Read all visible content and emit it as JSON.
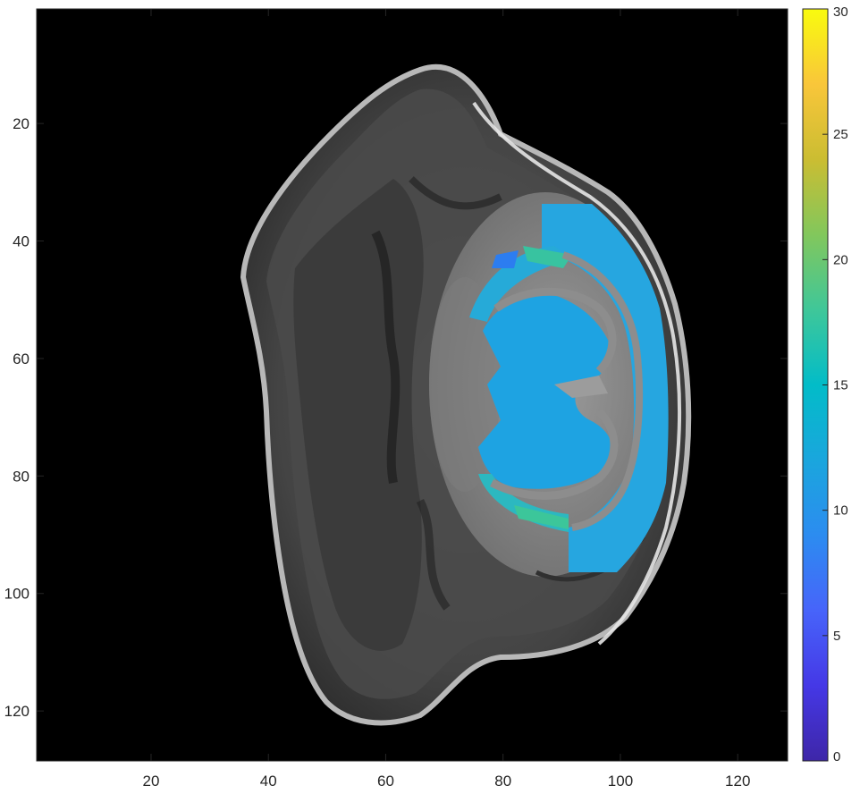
{
  "figure": {
    "image_description_icon": "mri-slice-overlay-icon",
    "background_color": "#000000",
    "overlay_colormap": "parula"
  },
  "axes": {
    "x_range": [
      1,
      128
    ],
    "y_range": [
      1,
      128
    ],
    "x_direction": "normal",
    "y_direction": "reverse",
    "x_ticks": [
      20,
      40,
      60,
      80,
      100,
      120
    ],
    "y_ticks": [
      20,
      40,
      60,
      80,
      100,
      120
    ],
    "x_tick_labels": [
      "20",
      "40",
      "60",
      "80",
      "100",
      "120"
    ],
    "y_tick_labels": [
      "20",
      "40",
      "60",
      "80",
      "100",
      "120"
    ]
  },
  "colorbar": {
    "range": [
      0,
      30
    ],
    "ticks": [
      0,
      5,
      10,
      15,
      20,
      25,
      30
    ],
    "tick_labels": [
      "0",
      "5",
      "10",
      "15",
      "20",
      "25",
      "30"
    ],
    "colors": [
      "#3e26a8",
      "#4743f8",
      "#2e87f7",
      "#03b5c9",
      "#5cc863",
      "#f7c131",
      "#f9fb0e"
    ]
  }
}
